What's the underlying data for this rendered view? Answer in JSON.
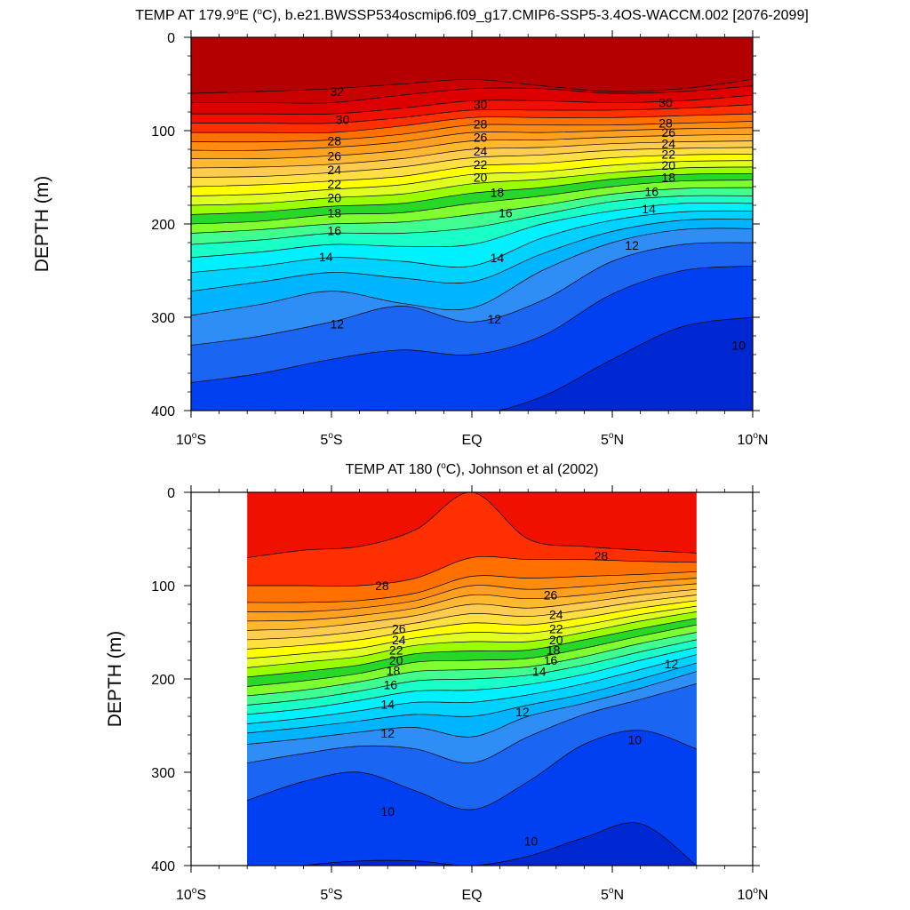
{
  "chart_data": [
    {
      "type": "heatmap",
      "subtype": "contour",
      "title": "TEMP AT 179.9°E (°C), b.e21.BWSSP534oscmip6.f09_g17.CMIP6-SSP5-3.4OS-WACCM.002 [2076-2099]",
      "title_parts": {
        "pre": "TEMP AT 179.9",
        "deg1": "o",
        "mid": "E (",
        "deg2": "o",
        "post": "C), b.e21.BWSSP534oscmip6.f09_g17.CMIP6-SSP5-3.4OS-WACCM.002 [2076-2099]"
      },
      "ylabel": "DEPTH (m)",
      "xlabel": "",
      "xlim": [
        -10,
        10
      ],
      "ylim": [
        0,
        400
      ],
      "yticks": [
        0,
        100,
        200,
        300,
        400
      ],
      "xticks": [
        {
          "value": -10,
          "num": "10",
          "deg": "o",
          "hemi": "S"
        },
        {
          "value": -5,
          "num": "5",
          "deg": "o",
          "hemi": "S"
        },
        {
          "value": 0,
          "num": "EQ",
          "deg": "",
          "hemi": ""
        },
        {
          "value": 5,
          "num": "5",
          "deg": "o",
          "hemi": "N"
        },
        {
          "value": 10,
          "num": "10",
          "deg": "o",
          "hemi": "N"
        }
      ],
      "data_xrange": [
        -10,
        10
      ],
      "contour_levels": [
        9,
        10,
        11,
        12,
        13,
        14,
        15,
        16,
        17,
        18,
        19,
        20,
        21,
        22,
        23,
        24,
        25,
        26,
        27,
        28,
        29,
        30,
        31,
        32
      ],
      "isotherm_depths_x": [
        -10,
        -7.5,
        -5,
        -2.5,
        0,
        2.5,
        5,
        7.5,
        10
      ],
      "isotherm_depths": {
        "32": [
          60,
          58,
          55,
          50,
          45,
          52,
          58,
          55,
          45
        ],
        "31": [
          70,
          70,
          70,
          62,
          55,
          55,
          60,
          58,
          52
        ],
        "30": [
          82,
          82,
          82,
          76,
          68,
          68,
          70,
          68,
          62
        ],
        "29": [
          92,
          92,
          92,
          86,
          78,
          78,
          78,
          76,
          72
        ],
        "28": [
          102,
          102,
          102,
          95,
          86,
          86,
          86,
          84,
          82
        ],
        "27": [
          112,
          112,
          110,
          104,
          94,
          94,
          94,
          92,
          90
        ],
        "26": [
          121,
          121,
          118,
          112,
          102,
          102,
          100,
          98,
          97
        ],
        "25": [
          130,
          130,
          127,
          121,
          111,
          110,
          107,
          105,
          104
        ],
        "24": [
          140,
          139,
          136,
          130,
          120,
          118,
          114,
          112,
          111
        ],
        "23": [
          150,
          149,
          145,
          139,
          129,
          126,
          121,
          119,
          118
        ],
        "22": [
          160,
          158,
          154,
          149,
          138,
          135,
          129,
          126,
          125
        ],
        "21": [
          170,
          168,
          163,
          158,
          147,
          144,
          137,
          133,
          132
        ],
        "20": [
          180,
          178,
          172,
          168,
          157,
          152,
          145,
          140,
          139
        ],
        "19": [
          190,
          187,
          181,
          178,
          167,
          161,
          152,
          147,
          146
        ],
        "18": [
          200,
          197,
          190,
          188,
          178,
          170,
          160,
          154,
          153
        ],
        "17": [
          210,
          206,
          200,
          198,
          190,
          180,
          168,
          162,
          161
        ],
        "16": [
          222,
          217,
          210,
          210,
          204,
          190,
          176,
          170,
          170
        ],
        "15": [
          236,
          230,
          222,
          224,
          222,
          200,
          186,
          178,
          178
        ],
        "14": [
          252,
          245,
          236,
          240,
          245,
          215,
          196,
          187,
          186
        ],
        "13": [
          272,
          262,
          252,
          258,
          262,
          232,
          208,
          196,
          195
        ],
        "12": [
          298,
          286,
          272,
          285,
          290,
          250,
          220,
          206,
          205
        ],
        "11": [
          330,
          320,
          305,
          288,
          305,
          282,
          240,
          222,
          220
        ],
        "10": [
          370,
          360,
          345,
          335,
          340,
          320,
          275,
          250,
          245
        ],
        "9": [
          405,
          400,
          400,
          400,
          405,
          385,
          345,
          310,
          300
        ]
      },
      "labels": [
        {
          "text": "32",
          "x": -4.8,
          "y": 58
        },
        {
          "text": "30",
          "x": -4.6,
          "y": 88
        },
        {
          "text": "30",
          "x": 0.3,
          "y": 72
        },
        {
          "text": "30",
          "x": 6.9,
          "y": 70
        },
        {
          "text": "28",
          "x": -4.9,
          "y": 111
        },
        {
          "text": "28",
          "x": 0.3,
          "y": 93
        },
        {
          "text": "28",
          "x": 6.9,
          "y": 92
        },
        {
          "text": "26",
          "x": -4.9,
          "y": 127
        },
        {
          "text": "26",
          "x": 0.3,
          "y": 107
        },
        {
          "text": "26",
          "x": 7.0,
          "y": 102
        },
        {
          "text": "24",
          "x": -4.9,
          "y": 142
        },
        {
          "text": "24",
          "x": 0.3,
          "y": 122
        },
        {
          "text": "24",
          "x": 7.0,
          "y": 114
        },
        {
          "text": "22",
          "x": -4.9,
          "y": 157
        },
        {
          "text": "22",
          "x": 0.3,
          "y": 136
        },
        {
          "text": "22",
          "x": 7.0,
          "y": 125
        },
        {
          "text": "20",
          "x": -4.9,
          "y": 172
        },
        {
          "text": "20",
          "x": 0.3,
          "y": 150
        },
        {
          "text": "20",
          "x": 7.0,
          "y": 137
        },
        {
          "text": "18",
          "x": -4.9,
          "y": 188
        },
        {
          "text": "18",
          "x": 0.9,
          "y": 166
        },
        {
          "text": "18",
          "x": 7.0,
          "y": 150
        },
        {
          "text": "16",
          "x": -4.9,
          "y": 207
        },
        {
          "text": "16",
          "x": 1.2,
          "y": 188
        },
        {
          "text": "16",
          "x": 6.4,
          "y": 165
        },
        {
          "text": "14",
          "x": -5.2,
          "y": 235
        },
        {
          "text": "14",
          "x": 0.9,
          "y": 236
        },
        {
          "text": "14",
          "x": 6.3,
          "y": 184
        },
        {
          "text": "12",
          "x": -4.8,
          "y": 307
        },
        {
          "text": "12",
          "x": 0.8,
          "y": 302
        },
        {
          "text": "12",
          "x": 5.7,
          "y": 223
        },
        {
          "text": "10",
          "x": 9.5,
          "y": 330
        }
      ]
    },
    {
      "type": "heatmap",
      "subtype": "contour",
      "title": "TEMP AT 180 (°C), Johnson et al (2002)",
      "title_parts": {
        "pre": "TEMP AT 180 (",
        "deg1": "o",
        "mid": "C), Johnson et al (2002)",
        "deg2": "",
        "post": ""
      },
      "ylabel": "DEPTH (m)",
      "xlabel": "",
      "xlim": [
        -10,
        10
      ],
      "ylim": [
        0,
        400
      ],
      "yticks": [
        0,
        100,
        200,
        300,
        400
      ],
      "xticks": [
        {
          "value": -10,
          "num": "10",
          "deg": "o",
          "hemi": "S"
        },
        {
          "value": -5,
          "num": "5",
          "deg": "o",
          "hemi": "S"
        },
        {
          "value": 0,
          "num": "EQ",
          "deg": "",
          "hemi": ""
        },
        {
          "value": 5,
          "num": "5",
          "deg": "o",
          "hemi": "N"
        },
        {
          "value": 10,
          "num": "10",
          "deg": "o",
          "hemi": "N"
        }
      ],
      "data_xrange": [
        -8,
        8
      ],
      "contour_levels": [
        9,
        10,
        11,
        12,
        13,
        14,
        15,
        16,
        17,
        18,
        19,
        20,
        21,
        22,
        23,
        24,
        25,
        26,
        27,
        28,
        29
      ],
      "isotherm_depths_x": [
        -8,
        -6,
        -4,
        -2,
        0,
        2,
        4,
        6,
        8
      ],
      "isotherm_depths": {
        "29": [
          70,
          62,
          58,
          40,
          0,
          50,
          58,
          62,
          65
        ],
        "28": [
          100,
          100,
          100,
          92,
          70,
          72,
          72,
          74,
          75
        ],
        "27": [
          118,
          118,
          116,
          108,
          90,
          92,
          90,
          88,
          85
        ],
        "26": [
          128,
          128,
          124,
          116,
          100,
          104,
          101,
          96,
          92
        ],
        "25": [
          138,
          137,
          132,
          124,
          110,
          114,
          110,
          103,
          98
        ],
        "24": [
          148,
          146,
          140,
          132,
          120,
          124,
          118,
          110,
          104
        ],
        "23": [
          158,
          155,
          149,
          140,
          130,
          133,
          126,
          117,
          110
        ],
        "22": [
          168,
          164,
          158,
          148,
          140,
          142,
          134,
          124,
          116
        ],
        "21": [
          178,
          173,
          167,
          156,
          150,
          151,
          142,
          131,
          122
        ],
        "20": [
          188,
          182,
          176,
          164,
          160,
          160,
          150,
          138,
          128
        ],
        "19": [
          198,
          192,
          185,
          173,
          170,
          169,
          158,
          146,
          135
        ],
        "18": [
          208,
          202,
          194,
          182,
          180,
          178,
          167,
          154,
          142
        ],
        "17": [
          218,
          212,
          203,
          192,
          190,
          187,
          176,
          162,
          150
        ],
        "16": [
          228,
          222,
          213,
          202,
          200,
          196,
          185,
          171,
          158
        ],
        "15": [
          238,
          232,
          223,
          213,
          212,
          206,
          195,
          180,
          166
        ],
        "14": [
          248,
          242,
          234,
          225,
          225,
          217,
          205,
          190,
          174
        ],
        "13": [
          258,
          252,
          245,
          238,
          240,
          228,
          216,
          200,
          183
        ],
        "12": [
          270,
          264,
          257,
          252,
          262,
          240,
          226,
          210,
          192
        ],
        "11": [
          290,
          280,
          272,
          275,
          290,
          262,
          238,
          222,
          205
        ],
        "10": [
          330,
          310,
          300,
          320,
          340,
          310,
          270,
          255,
          275
        ],
        "9": [
          410,
          400,
          395,
          395,
          400,
          390,
          370,
          355,
          400
        ]
      },
      "labels": [
        {
          "text": "28",
          "x": 4.6,
          "y": 68
        },
        {
          "text": "28",
          "x": -3.2,
          "y": 100
        },
        {
          "text": "26",
          "x": 2.8,
          "y": 110
        },
        {
          "text": "26",
          "x": -2.6,
          "y": 146
        },
        {
          "text": "24",
          "x": 3.0,
          "y": 131
        },
        {
          "text": "24",
          "x": -2.6,
          "y": 158
        },
        {
          "text": "22",
          "x": 3.0,
          "y": 146
        },
        {
          "text": "22",
          "x": -2.7,
          "y": 169
        },
        {
          "text": "20",
          "x": 3.0,
          "y": 158
        },
        {
          "text": "20",
          "x": -2.7,
          "y": 180
        },
        {
          "text": "18",
          "x": 2.9,
          "y": 169
        },
        {
          "text": "18",
          "x": -2.8,
          "y": 191
        },
        {
          "text": "16",
          "x": 2.8,
          "y": 180
        },
        {
          "text": "16",
          "x": -2.9,
          "y": 206
        },
        {
          "text": "14",
          "x": 2.4,
          "y": 192
        },
        {
          "text": "14",
          "x": -3.0,
          "y": 227
        },
        {
          "text": "12",
          "x": 7.1,
          "y": 184
        },
        {
          "text": "12",
          "x": 1.8,
          "y": 235
        },
        {
          "text": "12",
          "x": -3.0,
          "y": 258
        },
        {
          "text": "10",
          "x": 5.8,
          "y": 265
        },
        {
          "text": "10",
          "x": -3.0,
          "y": 342
        },
        {
          "text": "10",
          "x": 2.1,
          "y": 374
        }
      ]
    }
  ]
}
